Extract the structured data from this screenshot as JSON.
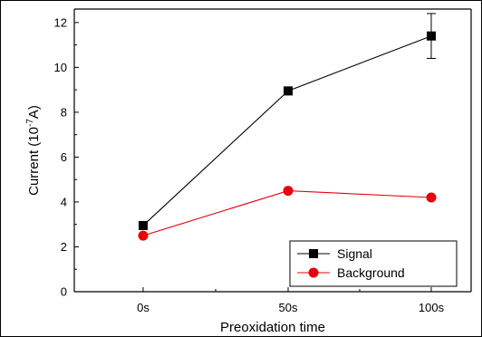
{
  "chart_data": {
    "type": "line",
    "categories": [
      "0s",
      "50s",
      "100s"
    ],
    "xlabel": "Preoxidation time",
    "ylabel_prefix": "Current (10",
    "ylabel_superscript": "-7",
    "ylabel_suffix": "A)",
    "ylim": [
      0,
      12.6
    ],
    "yticks": [
      0,
      2,
      4,
      6,
      8,
      10,
      12
    ],
    "grid": false,
    "legend_position": "bottom-right",
    "series": [
      {
        "name": "Signal",
        "values": [
          2.95,
          8.95,
          11.4
        ],
        "errors": [
          0.1,
          0.15,
          1.0
        ],
        "color": "#000000",
        "marker": "square"
      },
      {
        "name": "Background",
        "values": [
          2.5,
          4.5,
          4.2
        ],
        "errors": [
          0,
          0,
          0
        ],
        "color": "#e8000b",
        "marker": "circle"
      }
    ]
  }
}
